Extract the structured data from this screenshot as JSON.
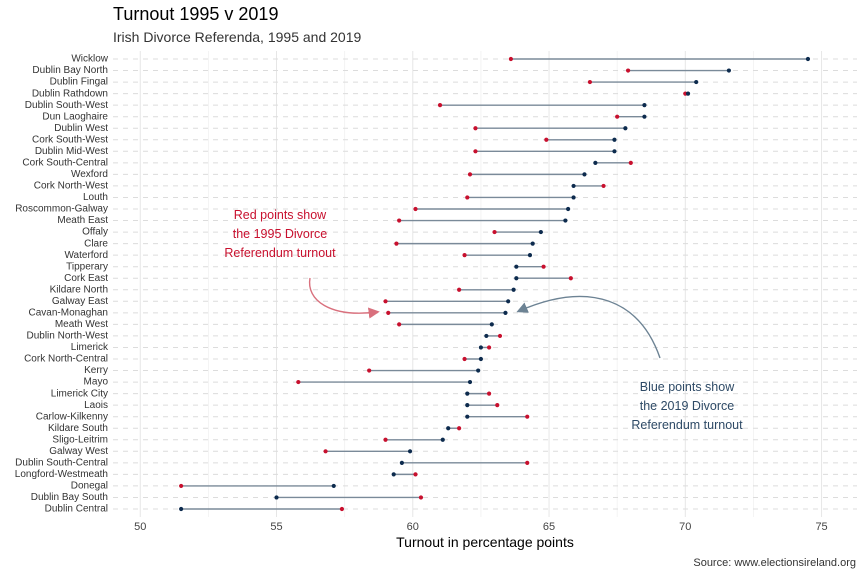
{
  "title": "Turnout 1995 v 2019",
  "subtitle": "Irish Divorce Referenda, 1995 and 2019",
  "caption": "Source: www.electionsireland.org",
  "colors": {
    "red": "#c8102e",
    "blue": "#0d2b4e",
    "segment": "#7a8a99",
    "red_arrow": "#d9707d",
    "blue_arrow": "#6d8394"
  },
  "chart_data": {
    "type": "dumbbell",
    "title": "Turnout 1995 v 2019",
    "subtitle": "Irish Divorce Referenda, 1995 and 2019",
    "xlabel": "Turnout in percentage points",
    "ylabel": "",
    "xlim": [
      49,
      76.3
    ],
    "xticks": [
      50,
      55,
      60,
      65,
      70,
      75
    ],
    "grid": true,
    "series": [
      {
        "name": "1995",
        "color": "#c8102e"
      },
      {
        "name": "2019",
        "color": "#0d2b4e"
      }
    ],
    "constituencies": [
      {
        "name": "Wicklow",
        "t1995": 63.6,
        "t2019": 74.5
      },
      {
        "name": "Dublin Bay North",
        "t1995": 67.9,
        "t2019": 71.6
      },
      {
        "name": "Dublin Fingal",
        "t1995": 66.5,
        "t2019": 70.4
      },
      {
        "name": "Dublin Rathdown",
        "t1995": 70.0,
        "t2019": 70.1
      },
      {
        "name": "Dublin South-West",
        "t1995": 61.0,
        "t2019": 68.5
      },
      {
        "name": "Dun Laoghaire",
        "t1995": 67.5,
        "t2019": 68.5
      },
      {
        "name": "Dublin West",
        "t1995": 62.3,
        "t2019": 67.8
      },
      {
        "name": "Cork South-West",
        "t1995": 64.9,
        "t2019": 67.4
      },
      {
        "name": "Dublin Mid-West",
        "t1995": 62.3,
        "t2019": 67.4
      },
      {
        "name": "Cork South-Central",
        "t1995": 68.0,
        "t2019": 66.7
      },
      {
        "name": "Wexford",
        "t1995": 62.1,
        "t2019": 66.3
      },
      {
        "name": "Cork North-West",
        "t1995": 67.0,
        "t2019": 65.9
      },
      {
        "name": "Louth",
        "t1995": 62.0,
        "t2019": 65.9
      },
      {
        "name": "Roscommon-Galway",
        "t1995": 60.1,
        "t2019": 65.7
      },
      {
        "name": "Meath East",
        "t1995": 59.5,
        "t2019": 65.6
      },
      {
        "name": "Offaly",
        "t1995": 63.0,
        "t2019": 64.7
      },
      {
        "name": "Clare",
        "t1995": 59.4,
        "t2019": 64.4
      },
      {
        "name": "Waterford",
        "t1995": 61.9,
        "t2019": 64.3
      },
      {
        "name": "Tipperary",
        "t1995": 64.8,
        "t2019": 63.8
      },
      {
        "name": "Cork East",
        "t1995": 65.8,
        "t2019": 63.8
      },
      {
        "name": "Kildare North",
        "t1995": 61.7,
        "t2019": 63.7
      },
      {
        "name": "Galway East",
        "t1995": 59.0,
        "t2019": 63.5
      },
      {
        "name": "Cavan-Monaghan",
        "t1995": 59.1,
        "t2019": 63.4
      },
      {
        "name": "Meath West",
        "t1995": 59.5,
        "t2019": 62.9
      },
      {
        "name": "Dublin North-West",
        "t1995": 63.2,
        "t2019": 62.7
      },
      {
        "name": "Limerick",
        "t1995": 62.8,
        "t2019": 62.5
      },
      {
        "name": "Cork North-Central",
        "t1995": 61.9,
        "t2019": 62.5
      },
      {
        "name": "Kerry",
        "t1995": 58.4,
        "t2019": 62.4
      },
      {
        "name": "Mayo",
        "t1995": 55.8,
        "t2019": 62.1
      },
      {
        "name": "Limerick City",
        "t1995": 62.8,
        "t2019": 62.0
      },
      {
        "name": "Laois",
        "t1995": 63.1,
        "t2019": 62.0
      },
      {
        "name": "Carlow-Kilkenny",
        "t1995": 64.2,
        "t2019": 62.0
      },
      {
        "name": "Kildare South",
        "t1995": 61.7,
        "t2019": 61.3
      },
      {
        "name": "Sligo-Leitrim",
        "t1995": 59.0,
        "t2019": 61.1
      },
      {
        "name": "Galway West",
        "t1995": 56.8,
        "t2019": 59.9
      },
      {
        "name": "Dublin South-Central",
        "t1995": 64.2,
        "t2019": 59.6
      },
      {
        "name": "Longford-Westmeath",
        "t1995": 60.1,
        "t2019": 59.3
      },
      {
        "name": "Donegal",
        "t1995": 51.5,
        "t2019": 57.1
      },
      {
        "name": "Dublin Bay South",
        "t1995": 60.3,
        "t2019": 55.0
      },
      {
        "name": "Dublin Central",
        "t1995": 57.4,
        "t2019": 51.5
      }
    ],
    "annotations": [
      {
        "id": "red-note",
        "lines": [
          "Red points show",
          "the 1995 Divorce",
          "Referendum turnout"
        ]
      },
      {
        "id": "blue-note",
        "lines": [
          "Blue points show",
          "the 2019 Divorce",
          "Referendum turnout"
        ]
      }
    ]
  }
}
